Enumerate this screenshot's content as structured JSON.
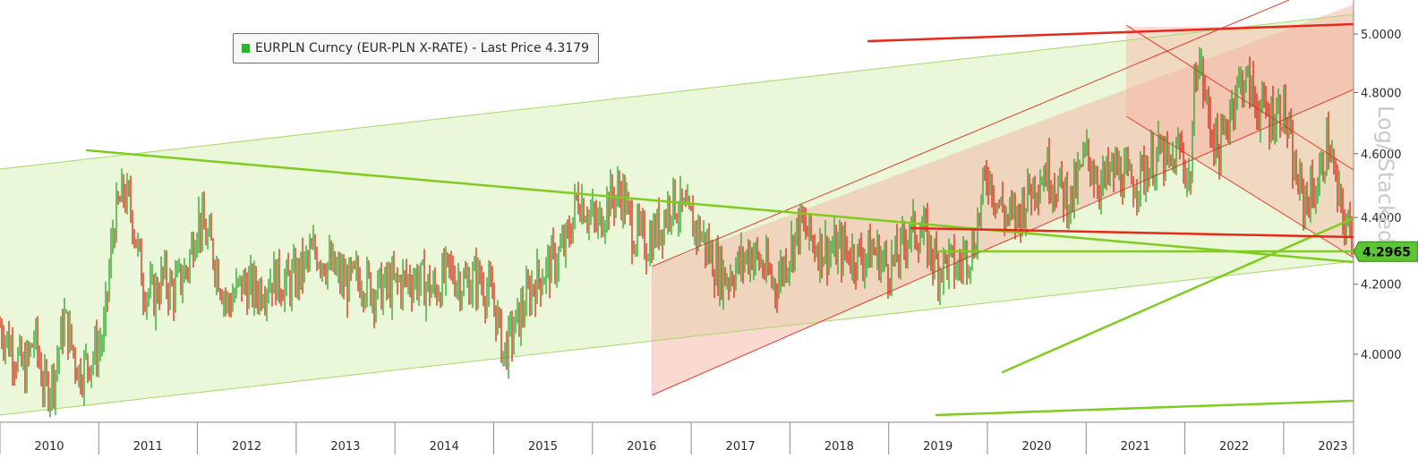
{
  "legend": {
    "label": "EURPLN Curncy (EUR-PLN X-RATE) - Last Price 4.3179",
    "swatch_color": "#2db52d"
  },
  "scale_label": "Log/ Stacked",
  "colors": {
    "up": "#2aa52a",
    "down": "#d42a16",
    "green_channel": "#c9e99a",
    "red_channel": "#f6b4a4",
    "green_line": "#7fcc1e",
    "red_line": "#e8281a",
    "badge": "#5cc532"
  },
  "chart_data": {
    "type": "line",
    "title": "",
    "series_name": "EURPLN Curncy (EUR-PLN X-RATE) - Last Price",
    "last_price": 4.3179,
    "y_scale": "log",
    "ylim": [
      3.82,
      5.12
    ],
    "xlim": [
      2009.95,
      2023.95
    ],
    "y_ticks": [
      "4.0000",
      "4.2000",
      "4.4000",
      "4.6000",
      "4.8000",
      "5.0000"
    ],
    "x_ticks": [
      "2010",
      "2011",
      "2012",
      "2013",
      "2014",
      "2015",
      "2016",
      "2017",
      "2018",
      "2019",
      "2020",
      "2021",
      "2022",
      "2023"
    ],
    "price_badge": "4.2965",
    "x": [
      2010.0,
      2010.25,
      2010.35,
      2010.45,
      2010.55,
      2010.65,
      2010.8,
      2010.95,
      2011.05,
      2011.15,
      2011.25,
      2011.33,
      2011.45,
      2011.55,
      2011.65,
      2011.75,
      2011.9,
      2012.0,
      2012.15,
      2012.3,
      2012.45,
      2012.6,
      2012.75,
      2012.9,
      2013.0,
      2013.2,
      2013.35,
      2013.5,
      2013.65,
      2013.8,
      2014.0,
      2014.2,
      2014.4,
      2014.55,
      2014.7,
      2014.85,
      2015.0,
      2015.1,
      2015.25,
      2015.4,
      2015.55,
      2015.65,
      2015.75,
      2015.85,
      2015.95,
      2016.05,
      2016.15,
      2016.3,
      2016.4,
      2016.55,
      2016.7,
      2016.8,
      2016.95,
      2017.1,
      2017.25,
      2017.35,
      2017.5,
      2017.6,
      2017.75,
      2017.85,
      2018.0,
      2018.1,
      2018.25,
      2018.4,
      2018.55,
      2018.7,
      2018.85,
      2019.0,
      2019.1,
      2019.2,
      2019.35,
      2019.5,
      2019.6,
      2019.7,
      2019.78,
      2019.85,
      2020.0,
      2020.1,
      2020.2,
      2020.3,
      2020.45,
      2020.6,
      2020.7,
      2020.85,
      2021.0,
      2021.15,
      2021.3,
      2021.45,
      2021.6,
      2021.75,
      2021.85,
      2021.95,
      2022.05,
      2022.12,
      2022.25,
      2022.35,
      2022.5,
      2022.6,
      2022.75,
      2022.85,
      2023.0,
      2023.1,
      2023.2,
      2023.35,
      2023.45,
      2023.55,
      2023.65,
      2023.75,
      2023.85,
      2023.93
    ],
    "y": [
      4.08,
      3.95,
      4.05,
      3.9,
      3.94,
      4.1,
      3.95,
      4.0,
      4.05,
      4.38,
      4.48,
      4.42,
      4.2,
      4.16,
      4.22,
      4.18,
      4.25,
      4.4,
      4.3,
      4.14,
      4.2,
      4.18,
      4.22,
      4.2,
      4.22,
      4.3,
      4.25,
      4.2,
      4.22,
      4.18,
      4.2,
      4.22,
      4.18,
      4.24,
      4.2,
      4.22,
      4.15,
      4.0,
      4.1,
      4.2,
      4.25,
      4.28,
      4.33,
      4.47,
      4.42,
      4.37,
      4.45,
      4.48,
      4.36,
      4.32,
      4.38,
      4.46,
      4.4,
      4.35,
      4.25,
      4.22,
      4.26,
      4.3,
      4.24,
      4.2,
      4.3,
      4.38,
      4.32,
      4.3,
      4.3,
      4.28,
      4.3,
      4.25,
      4.28,
      4.36,
      4.35,
      4.25,
      4.27,
      4.24,
      4.3,
      4.3,
      4.55,
      4.45,
      4.4,
      4.4,
      4.5,
      4.55,
      4.5,
      4.45,
      4.6,
      4.5,
      4.55,
      4.5,
      4.55,
      4.6,
      4.55,
      4.62,
      4.5,
      4.95,
      4.7,
      4.6,
      4.8,
      4.85,
      4.75,
      4.72,
      4.75,
      4.55,
      4.45,
      4.5,
      4.65,
      4.45,
      4.36,
      4.35,
      4.32,
      4.32
    ]
  }
}
